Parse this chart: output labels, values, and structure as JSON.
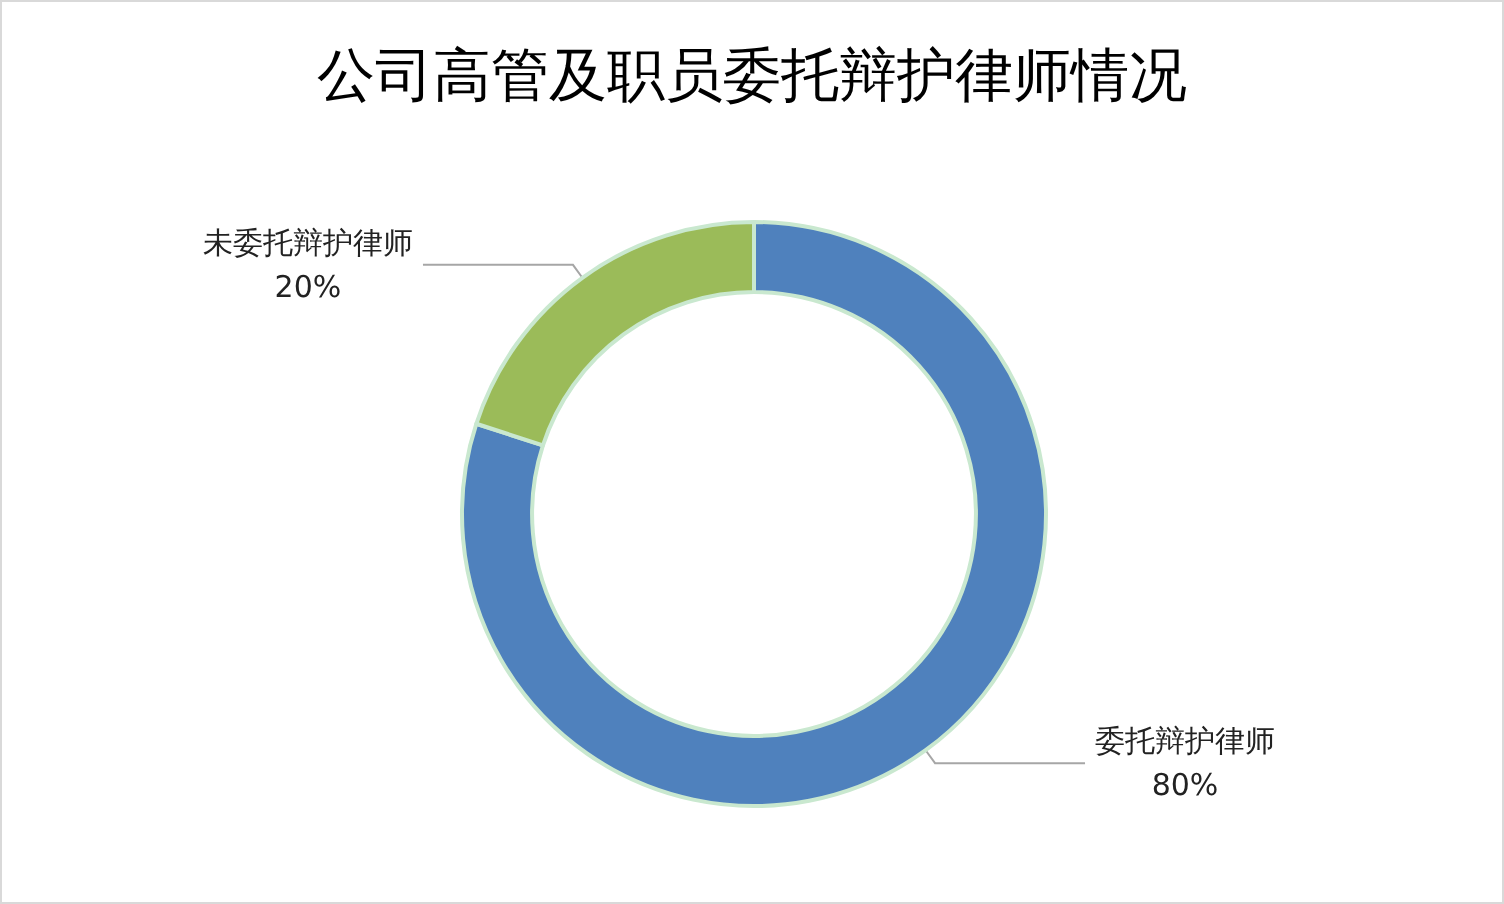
{
  "chart_data": {
    "type": "donut",
    "title": "公司高管及职员委托辩护律师情况",
    "categories": [
      "委托辩护律师",
      "未委托辩护律师"
    ],
    "values": [
      80,
      20
    ],
    "colors": [
      "#4f81bd",
      "#9bbb59"
    ],
    "value_labels": [
      "80%",
      "20%"
    ],
    "legend": false
  }
}
